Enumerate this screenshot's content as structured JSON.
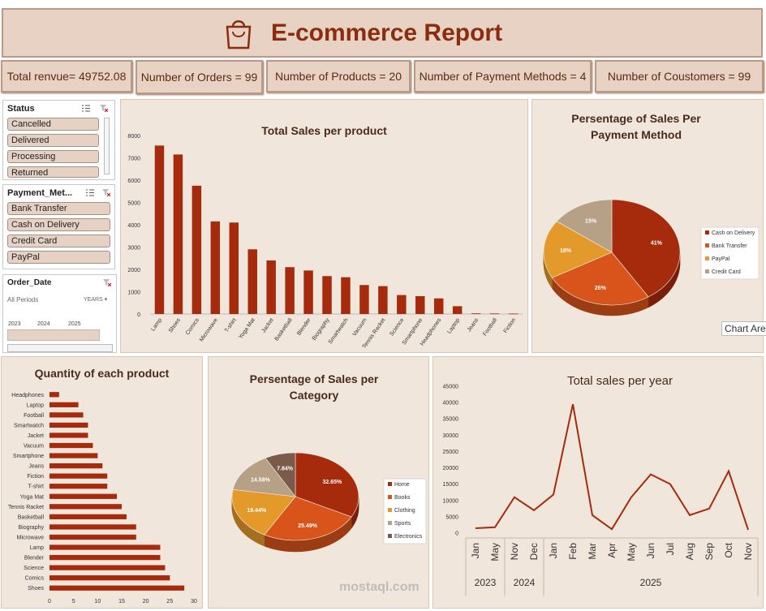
{
  "header": {
    "title": "E-commerce Report"
  },
  "kpis": [
    {
      "label": "Total renvue= 49752.08"
    },
    {
      "label": "Number of Orders = 99"
    },
    {
      "label": "Number of Products =  20"
    },
    {
      "label": "Number of Payment Methods =  4"
    },
    {
      "label": "Number of Coustomers = 99"
    }
  ],
  "slicers": {
    "status": {
      "title": "Status",
      "items": [
        "Cancelled",
        "Delivered",
        "Processing",
        "Returned"
      ]
    },
    "payment": {
      "title": "Payment_Met...",
      "items": [
        "Bank Transfer",
        "Cash on Delivery",
        "Credit Card",
        "PayPal"
      ]
    },
    "order_date": {
      "title": "Order_Date",
      "all_periods": "All Periods",
      "level": "YEARS",
      "years": [
        "2023",
        "2024",
        "2025"
      ]
    }
  },
  "chart_area_tooltip": "Chart Area",
  "watermark": {
    "text": "mostaql.com"
  },
  "colors": {
    "dark_red": "#a62b0c",
    "orange": "#d8541a",
    "gold": "#e49a2a",
    "tan": "#b6a086",
    "brown": "#7a5a48"
  },
  "chart_data": [
    {
      "type": "bar",
      "title": "Total Sales per product",
      "categories": [
        "Lamp",
        "Shoes",
        "Comics",
        "Microwave",
        "T-shirt",
        "Yoga Mat",
        "Jacket",
        "Basketball",
        "Blender",
        "Biography",
        "Smartwatch",
        "Vacuum",
        "Tennis Racket",
        "Science",
        "Smartphone",
        "Headphones",
        "Laptop",
        "Jeans",
        "Football",
        "Fiction"
      ],
      "values": [
        7550,
        7150,
        5750,
        4150,
        4100,
        2900,
        2400,
        2100,
        1950,
        1700,
        1650,
        1300,
        1250,
        850,
        800,
        700,
        350,
        30,
        25,
        20
      ],
      "ylim": [
        0,
        8000
      ],
      "yticks": [
        "0",
        "1000",
        "2000",
        "3000",
        "4000",
        "5000",
        "6000",
        "7000",
        "8000"
      ],
      "color": "#a62b0c"
    },
    {
      "type": "pie",
      "title": "Persentage of Sales Per Payment Method",
      "labels": [
        "Cash on Delivery",
        "Bank Transfer",
        "PayPal",
        "Credit Card"
      ],
      "values": [
        41,
        26,
        18,
        15
      ],
      "data_labels": [
        "41%",
        "26%",
        "18%",
        "15%"
      ],
      "colors": [
        "#a62b0c",
        "#d8541a",
        "#e49a2a",
        "#b6a086"
      ],
      "legend": "right"
    },
    {
      "type": "bar",
      "orientation": "horizontal",
      "title": "Quantity of each product",
      "categories": [
        "Headphones",
        "Laptop",
        "Football",
        "Smartwatch",
        "Jacket",
        "Vacuum",
        "Smartphone",
        "Jeans",
        "Fiction",
        "T-shirt",
        "Yoga Mat",
        "Tennis Racket",
        "Basketball",
        "Biography",
        "Microwave",
        "Lamp",
        "Blender",
        "Science",
        "Comics",
        "Shoes"
      ],
      "values": [
        2,
        6,
        7,
        8,
        8,
        9,
        10,
        11,
        12,
        12,
        14,
        15,
        16,
        18,
        18,
        23,
        23,
        24,
        25,
        28
      ],
      "xlim": [
        0,
        30
      ],
      "xticks": [
        "0",
        "5",
        "10",
        "15",
        "20",
        "25",
        "30"
      ],
      "color": "#a62b0c"
    },
    {
      "type": "pie",
      "title": "Persentage of Sales per Category",
      "labels": [
        "Home",
        "Books",
        "Clothing",
        "Sports",
        "Electronics"
      ],
      "values": [
        32.65,
        25.49,
        19.44,
        14.58,
        7.84
      ],
      "data_labels": [
        "32.65%",
        "25.49%",
        "19.44%",
        "14.58%",
        "7.84%"
      ],
      "colors": [
        "#a62b0c",
        "#d8541a",
        "#e49a2a",
        "#b6a086",
        "#7a5a48"
      ],
      "legend": "right"
    },
    {
      "type": "line",
      "title": "Total sales per year",
      "x": [
        "Jan",
        "May",
        "Nov",
        "Dec",
        "Jan",
        "Feb",
        "Mar",
        "Apr",
        "May",
        "Jun",
        "Jul",
        "Aug",
        "Sep",
        "Oct",
        "Nov"
      ],
      "years": [
        {
          "label": "2023",
          "span": 2
        },
        {
          "label": "2024",
          "span": 2
        },
        {
          "label": "2025",
          "span": 11
        }
      ],
      "values": [
        1500,
        1800,
        11000,
        7000,
        11800,
        39500,
        5500,
        1200,
        11000,
        18000,
        15000,
        5500,
        7500,
        19000,
        1000
      ],
      "ylim": [
        0,
        45000
      ],
      "yticks": [
        "0",
        "5000",
        "10000",
        "15000",
        "20000",
        "25000",
        "30000",
        "35000",
        "40000",
        "45000"
      ],
      "color": "#a62b0c"
    }
  ]
}
